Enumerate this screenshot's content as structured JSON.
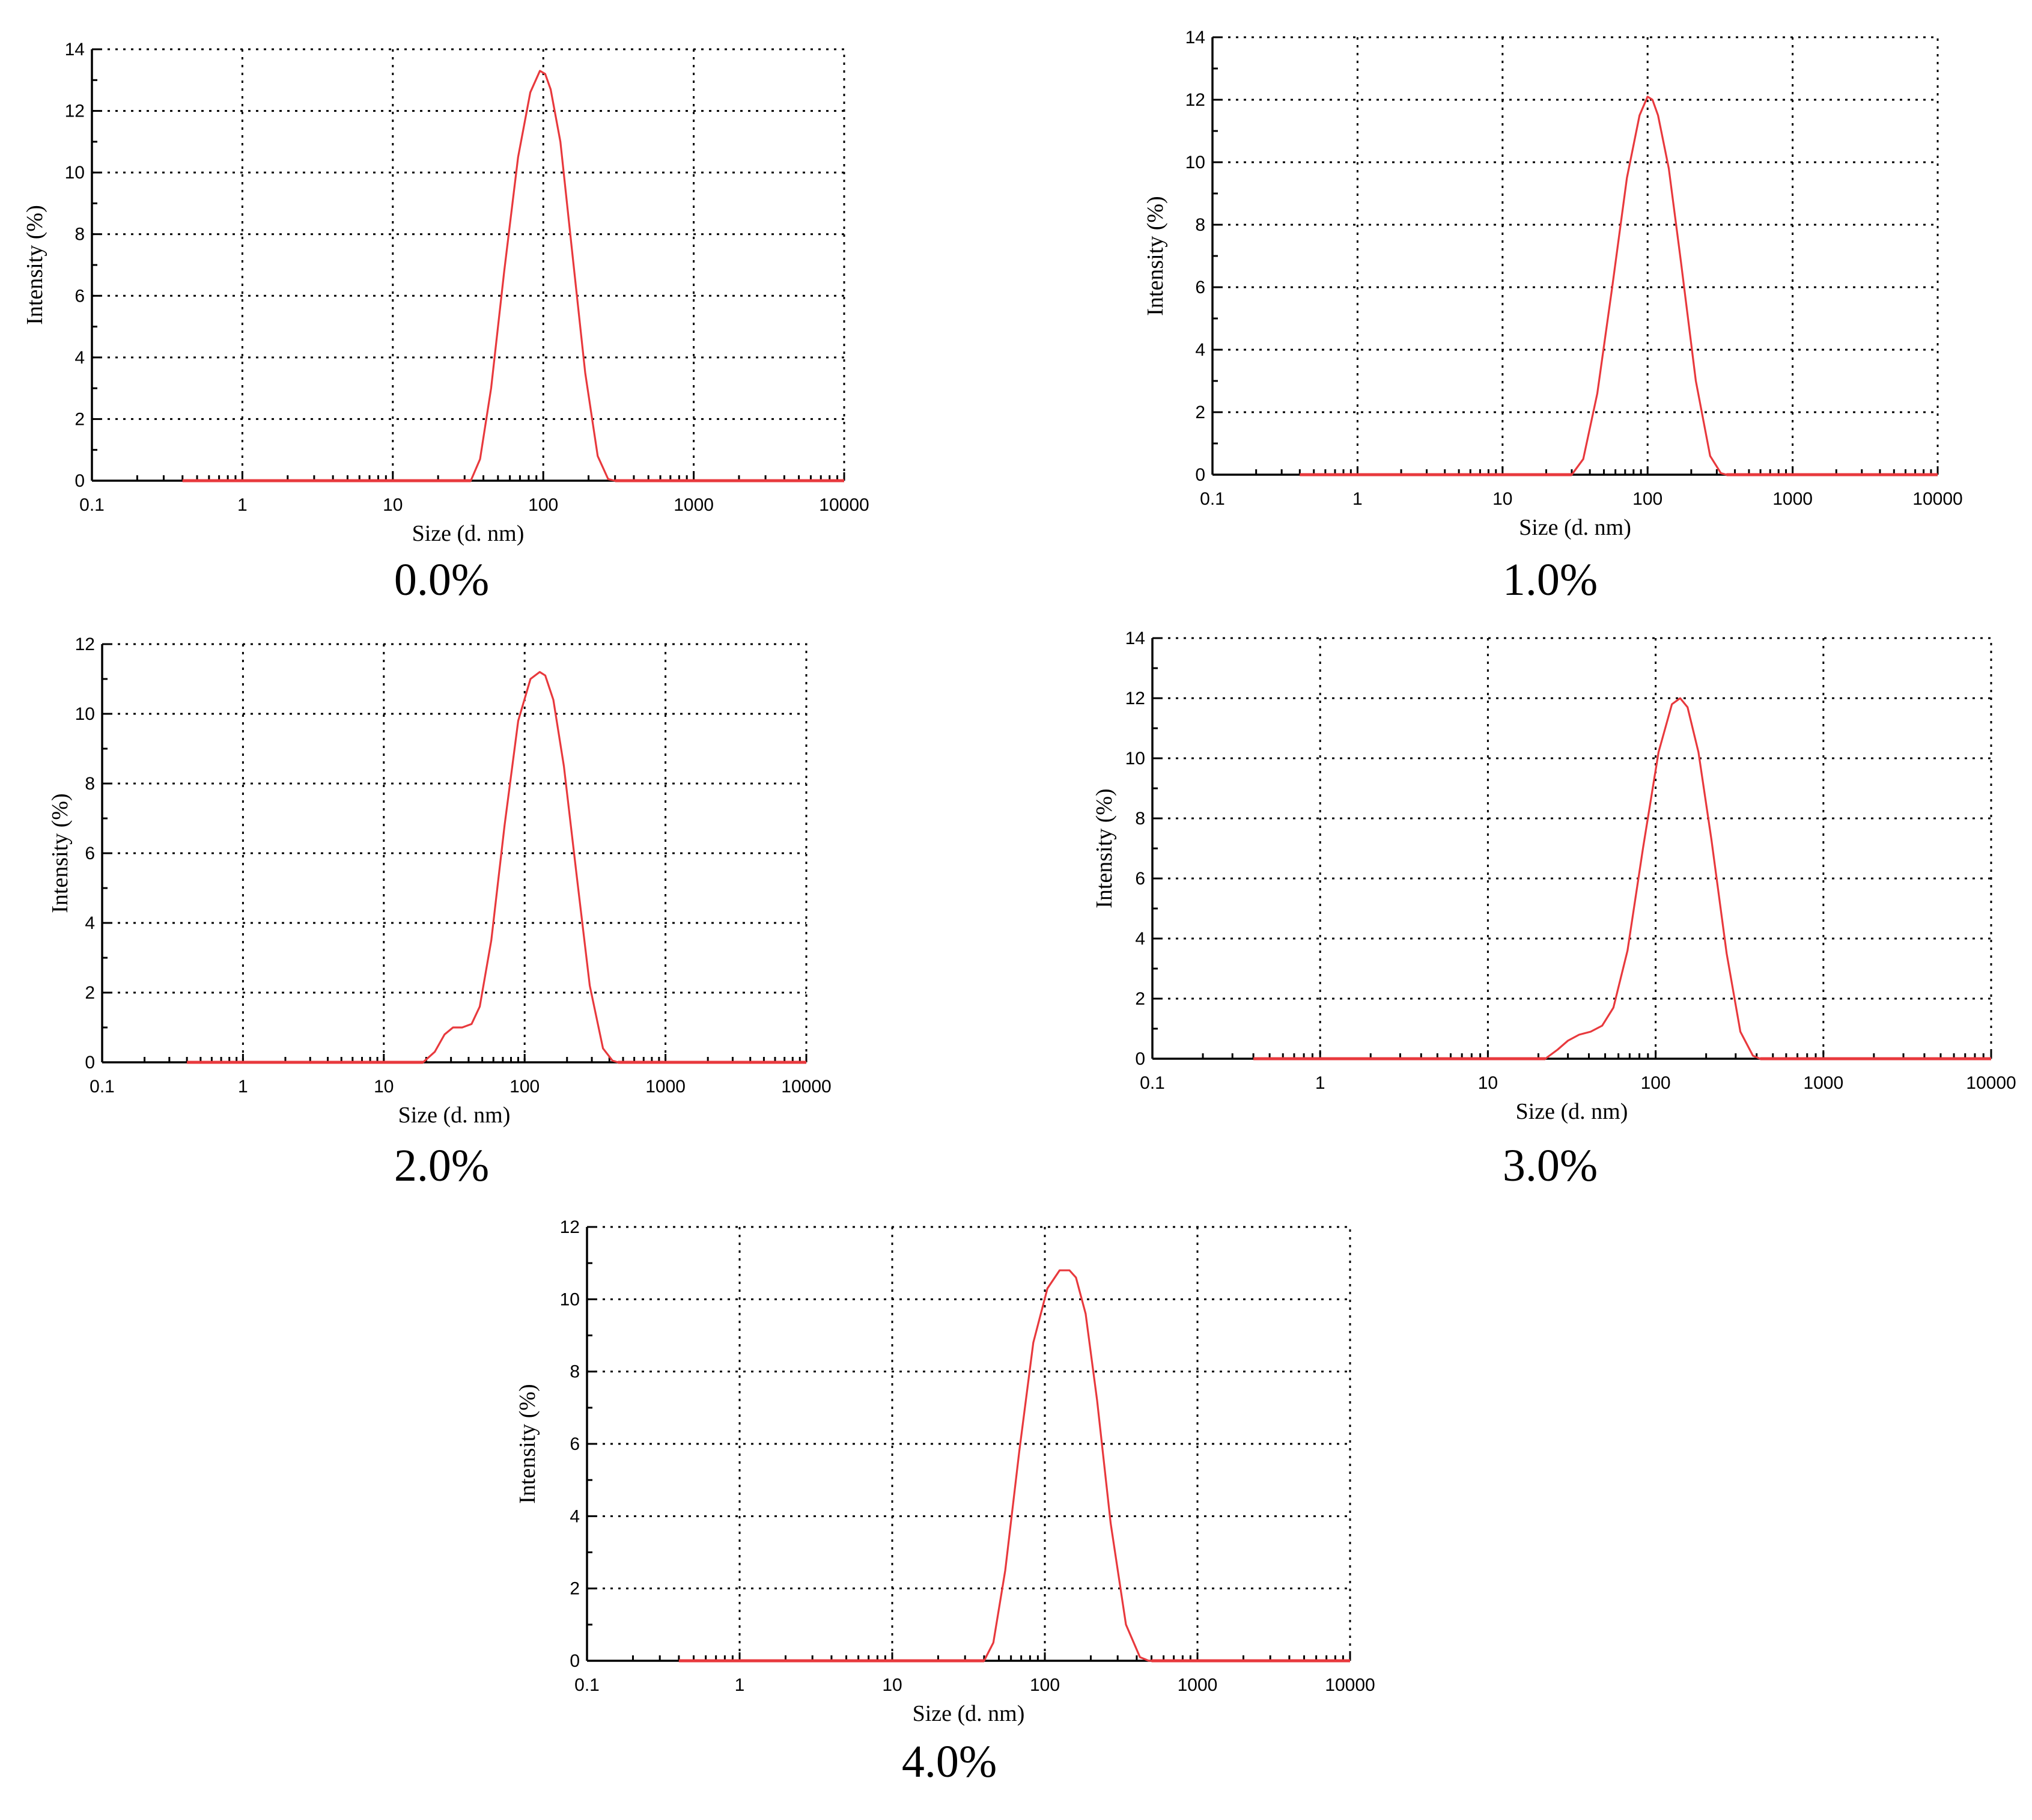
{
  "colors": {
    "curve": "#e8393d",
    "axis": "#000000",
    "background": "#ffffff"
  },
  "chart_data": [
    {
      "type": "line",
      "caption": "0.0%",
      "xlabel": "Size (d. nm)",
      "ylabel": "Intensity (%)",
      "xscale": "log",
      "xlim": [
        0.1,
        10000
      ],
      "ylim": [
        0,
        14
      ],
      "xticks": [
        "0.1",
        "1",
        "10",
        "100",
        "1000",
        "10000"
      ],
      "yticks": [
        "0",
        "2",
        "4",
        "6",
        "8",
        "10",
        "12",
        "14"
      ],
      "grid": true,
      "series": [
        {
          "x": [
            0.4,
            33,
            38,
            45,
            55,
            68,
            82,
            95,
            103,
            112,
            130,
            155,
            190,
            230,
            270,
            300,
            10000
          ],
          "y": [
            0,
            0,
            0.7,
            3.0,
            6.8,
            10.5,
            12.6,
            13.3,
            13.2,
            12.7,
            11.0,
            7.5,
            3.5,
            0.8,
            0.05,
            0,
            0
          ]
        }
      ]
    },
    {
      "type": "line",
      "caption": "1.0%",
      "xlabel": "Size (d. nm)",
      "ylabel": "Intensity (%)",
      "xscale": "log",
      "xlim": [
        0.1,
        10000
      ],
      "ylim": [
        0,
        14
      ],
      "xticks": [
        "0.1",
        "1",
        "10",
        "100",
        "1000",
        "10000"
      ],
      "yticks": [
        "0",
        "2",
        "4",
        "6",
        "8",
        "10",
        "12",
        "14"
      ],
      "grid": true,
      "series": [
        {
          "x": [
            0.4,
            30,
            36,
            45,
            57,
            72,
            88,
            100,
            108,
            118,
            140,
            170,
            215,
            270,
            320,
            350,
            10000
          ],
          "y": [
            0,
            0,
            0.5,
            2.6,
            6.0,
            9.5,
            11.5,
            12.1,
            12.0,
            11.5,
            9.8,
            6.8,
            3.0,
            0.6,
            0.05,
            0,
            0
          ]
        }
      ]
    },
    {
      "type": "line",
      "caption": "2.0%",
      "xlabel": "Size (d. nm)",
      "ylabel": "Intensity (%)",
      "xscale": "log",
      "xlim": [
        0.1,
        10000
      ],
      "ylim": [
        0,
        12
      ],
      "xticks": [
        "0.1",
        "1",
        "10",
        "100",
        "1000",
        "10000"
      ],
      "yticks": [
        "0",
        "2",
        "4",
        "6",
        "8",
        "10",
        "12"
      ],
      "grid": true,
      "series": [
        {
          "x": [
            0.4,
            19,
            23,
            27,
            31,
            36,
            42,
            48,
            58,
            72,
            90,
            110,
            128,
            140,
            160,
            190,
            235,
            290,
            360,
            420,
            460,
            10000
          ],
          "y": [
            0,
            0,
            0.3,
            0.8,
            1.0,
            1.0,
            1.1,
            1.6,
            3.5,
            6.8,
            9.8,
            11.0,
            11.2,
            11.1,
            10.4,
            8.5,
            5.3,
            2.2,
            0.4,
            0.05,
            0,
            0
          ]
        }
      ]
    },
    {
      "type": "line",
      "caption": "3.0%",
      "xlabel": "Size (d. nm)",
      "ylabel": "Intensity (%)",
      "xscale": "log",
      "xlim": [
        0.1,
        10000
      ],
      "ylim": [
        0,
        14
      ],
      "xticks": [
        "0.1",
        "1",
        "10",
        "100",
        "1000",
        "10000"
      ],
      "yticks": [
        "0",
        "2",
        "4",
        "6",
        "8",
        "10",
        "12",
        "14"
      ],
      "grid": true,
      "series": [
        {
          "x": [
            0.4,
            22,
            26,
            30,
            35,
            41,
            48,
            56,
            68,
            84,
            104,
            125,
            140,
            155,
            180,
            215,
            265,
            320,
            380,
            420,
            10000
          ],
          "y": [
            0,
            0,
            0.3,
            0.6,
            0.8,
            0.9,
            1.1,
            1.7,
            3.6,
            7.0,
            10.2,
            11.8,
            12.0,
            11.7,
            10.2,
            7.3,
            3.5,
            0.9,
            0.1,
            0,
            0
          ]
        }
      ]
    },
    {
      "type": "line",
      "caption": "4.0%",
      "xlabel": "Size (d. nm)",
      "ylabel": "Intensity (%)",
      "xscale": "log",
      "xlim": [
        0.1,
        10000
      ],
      "ylim": [
        0,
        12
      ],
      "xticks": [
        "0.1",
        "1",
        "10",
        "100",
        "1000",
        "10000"
      ],
      "yticks": [
        "0",
        "2",
        "4",
        "6",
        "8",
        "10",
        "12"
      ],
      "grid": true,
      "series": [
        {
          "x": [
            0.4,
            40,
            46,
            55,
            68,
            84,
            104,
            125,
            145,
            160,
            185,
            220,
            270,
            340,
            420,
            480,
            500,
            10000
          ],
          "y": [
            0,
            0,
            0.5,
            2.5,
            5.8,
            8.8,
            10.3,
            10.8,
            10.8,
            10.6,
            9.6,
            7.2,
            3.8,
            1.0,
            0.1,
            0,
            0,
            0
          ]
        }
      ]
    }
  ]
}
